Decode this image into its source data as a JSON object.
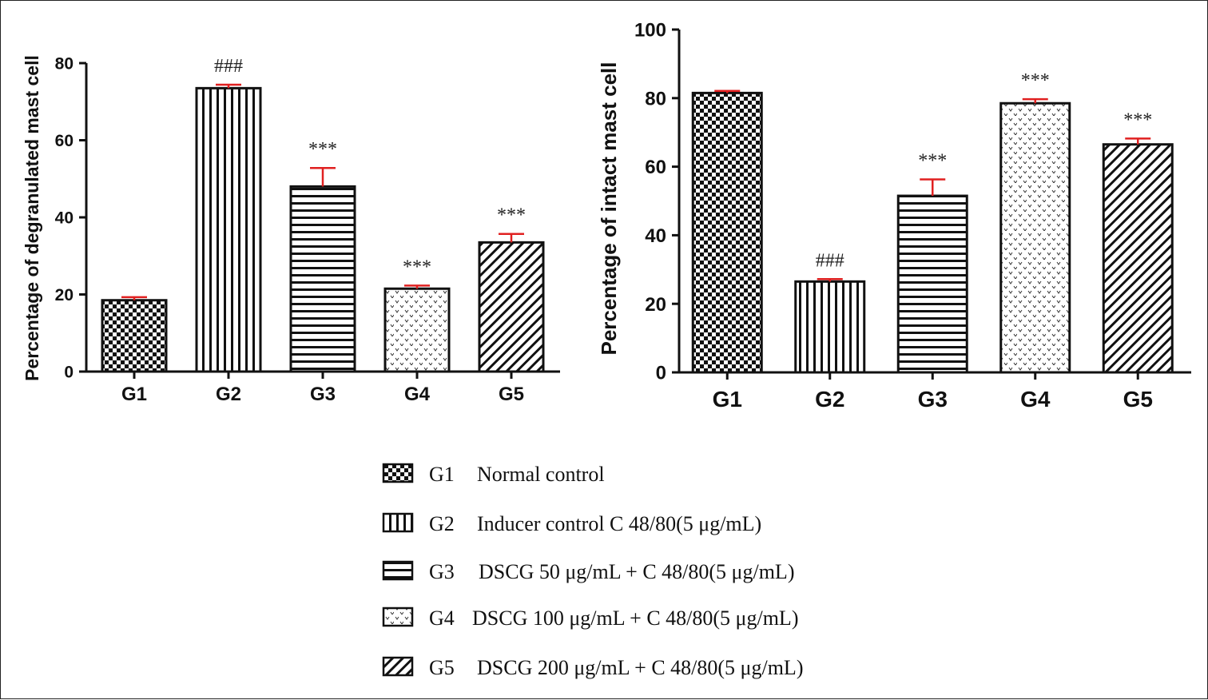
{
  "chart_data": [
    {
      "type": "bar",
      "categories": [
        "G1",
        "G2",
        "G3",
        "G4",
        "G5"
      ],
      "values": [
        18.5,
        73.5,
        48,
        21.5,
        33.5
      ],
      "errors": [
        0.8,
        0.9,
        4.8,
        0.8,
        2.2
      ],
      "annotations": [
        "",
        "###",
        "***",
        "***",
        "***"
      ],
      "ylabel": "Percentage of degranulated mast cell",
      "ylim": [
        0,
        80
      ],
      "yticks": [
        0,
        20,
        40,
        60,
        80
      ]
    },
    {
      "type": "bar",
      "categories": [
        "G1",
        "G2",
        "G3",
        "G4",
        "G5"
      ],
      "values": [
        81.5,
        26.5,
        51.5,
        78.5,
        66.5
      ],
      "errors": [
        0.6,
        0.7,
        4.8,
        1.2,
        1.7
      ],
      "annotations": [
        "",
        "###",
        "***",
        "***",
        "***"
      ],
      "ylabel": "Percentage of intact mast cell",
      "ylim": [
        0,
        100
      ],
      "yticks": [
        0,
        20,
        40,
        60,
        80,
        100
      ]
    }
  ],
  "legend": [
    {
      "group": "G1",
      "label": "Normal control",
      "pattern": "checker"
    },
    {
      "group": "G2",
      "label": "Inducer control  C 48/80(5 μg/mL)",
      "pattern": "vlines"
    },
    {
      "group": "G3",
      "label": "DSCG 50 μg/mL + C 48/80(5 μg/mL)",
      "pattern": "hlines"
    },
    {
      "group": "G4",
      "label": "DSCG 100 μg/mL + C 48/80(5 μg/mL)",
      "pattern": "dots"
    },
    {
      "group": "G5",
      "label": "DSCG 200 μg/mL + C 48/80(5 μg/mL)",
      "pattern": "diag"
    }
  ],
  "colors": {
    "axis": "#111111",
    "error_bar": "#e02020",
    "pattern": "#111111"
  }
}
